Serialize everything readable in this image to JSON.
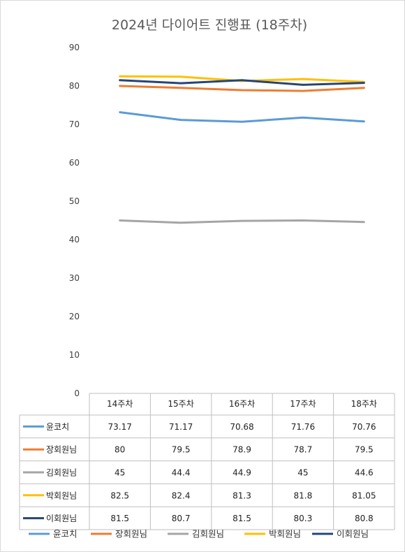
{
  "chart_data": {
    "type": "line",
    "title": "2024년 다이어트 진행표 (18주차)",
    "categories": [
      "14주차",
      "15주차",
      "16주차",
      "17주차",
      "18주차"
    ],
    "ylim": [
      0,
      90
    ],
    "yticks": [
      0,
      10,
      20,
      30,
      40,
      50,
      60,
      70,
      80,
      90
    ],
    "grid": false,
    "legend": "bottom",
    "data_table": true,
    "series": [
      {
        "name": "윤코치",
        "color": "#5B9BD5",
        "values": [
          73.17,
          71.17,
          70.68,
          71.76,
          70.76
        ]
      },
      {
        "name": "장회원님",
        "color": "#ED7D31",
        "values": [
          80,
          79.5,
          78.9,
          78.7,
          79.5
        ]
      },
      {
        "name": "김회원님",
        "color": "#A5A5A5",
        "values": [
          45,
          44.4,
          44.9,
          45,
          44.6
        ]
      },
      {
        "name": "박회원님",
        "color": "#FFC000",
        "values": [
          82.5,
          82.4,
          81.3,
          81.8,
          81.05
        ]
      },
      {
        "name": "이회원님",
        "color": "#264478",
        "values": [
          81.5,
          80.7,
          81.5,
          80.3,
          80.8
        ]
      }
    ]
  }
}
